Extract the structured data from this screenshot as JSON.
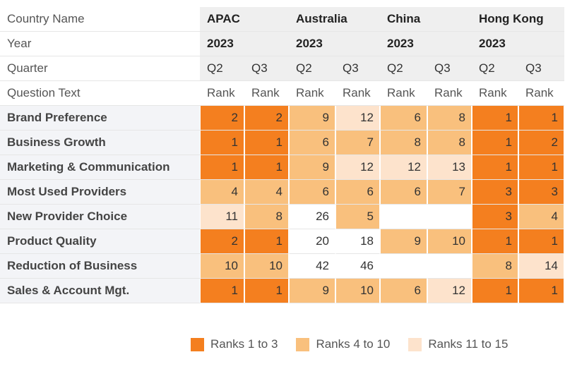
{
  "chart_data": {
    "type": "table",
    "header_labels": {
      "country": "Country Name",
      "year": "Year",
      "quarter": "Quarter",
      "question": "Question Text"
    },
    "countries": [
      "APAC",
      "Australia",
      "China",
      "Hong Kong"
    ],
    "years": [
      "2023",
      "2023",
      "2023",
      "2023"
    ],
    "quarters": [
      "Q2",
      "Q3",
      "Q2",
      "Q3",
      "Q2",
      "Q3",
      "Q2",
      "Q3"
    ],
    "measure": "Rank",
    "rows": [
      {
        "question": "Brand Preference",
        "values": [
          2,
          2,
          9,
          12,
          6,
          8,
          1,
          1
        ]
      },
      {
        "question": "Business Growth",
        "values": [
          1,
          1,
          6,
          7,
          8,
          8,
          1,
          2
        ]
      },
      {
        "question": "Marketing & Communication",
        "values": [
          1,
          1,
          9,
          12,
          12,
          13,
          1,
          1
        ]
      },
      {
        "question": "Most Used Providers",
        "values": [
          4,
          4,
          6,
          6,
          6,
          7,
          3,
          3
        ]
      },
      {
        "question": "New Provider Choice",
        "values": [
          11,
          8,
          26,
          5,
          null,
          null,
          3,
          4
        ]
      },
      {
        "question": "Product Quality",
        "values": [
          2,
          1,
          20,
          18,
          9,
          10,
          1,
          1
        ]
      },
      {
        "question": "Reduction of Business",
        "values": [
          10,
          10,
          42,
          46,
          null,
          null,
          8,
          14
        ]
      },
      {
        "question": "Sales & Account Mgt.",
        "values": [
          1,
          1,
          9,
          10,
          6,
          12,
          1,
          1
        ]
      }
    ],
    "legend": [
      {
        "label": "Ranks 1 to 3",
        "min": 1,
        "max": 3,
        "color": "#f47f1f"
      },
      {
        "label": "Ranks 4 to 10",
        "min": 4,
        "max": 10,
        "color": "#f9c07d"
      },
      {
        "label": "Ranks 11 to 15",
        "min": 11,
        "max": 15,
        "color": "#fde3cc"
      }
    ],
    "legend_position": "bottom"
  }
}
